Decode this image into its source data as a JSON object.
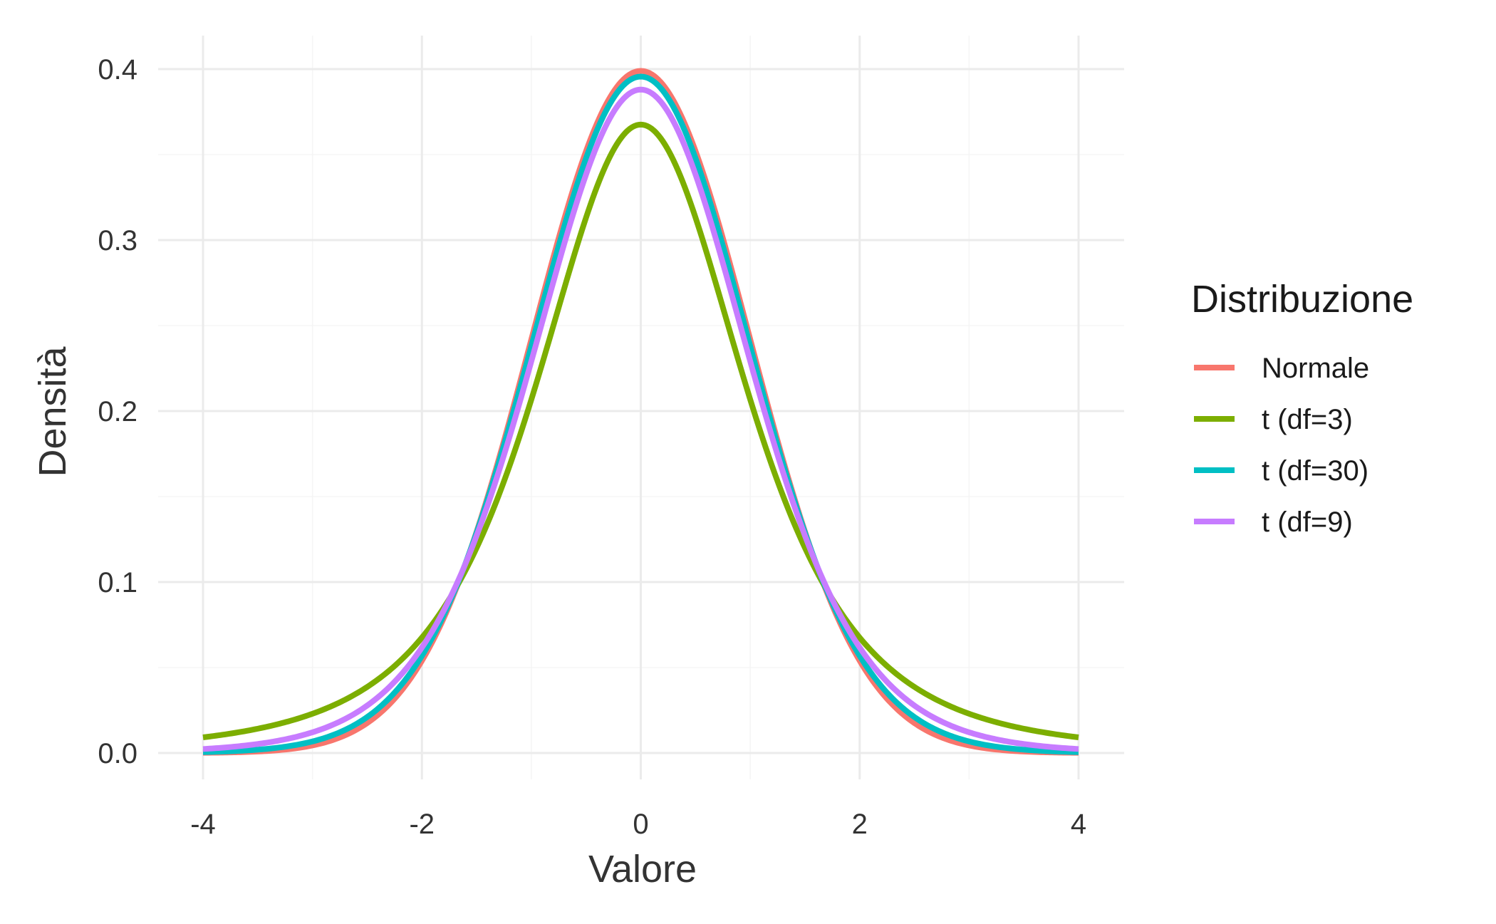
{
  "chart_data": {
    "type": "line",
    "xlabel": "Valore",
    "ylabel": "Densità",
    "xlim": [
      -4,
      4
    ],
    "ylim": [
      0,
      0.4
    ],
    "x_ticks": [
      "-4",
      "-2",
      "0",
      "2",
      "4"
    ],
    "y_ticks": [
      "0.0",
      "0.1",
      "0.2",
      "0.3",
      "0.4"
    ],
    "grid": true,
    "legend": {
      "title": "Distribuzione",
      "placement": "right"
    },
    "series": [
      {
        "name": "Normale",
        "color": "#F8766D",
        "df": null
      },
      {
        "name": "t (df=3)",
        "color": "#7CAE00",
        "df": 3
      },
      {
        "name": "t (df=30)",
        "color": "#00BFC4",
        "df": 30
      },
      {
        "name": "t (df=9)",
        "color": "#C77CFF",
        "df": 9
      }
    ],
    "sample_points": {
      "x": [
        -4,
        -3,
        -2,
        -1,
        0,
        1,
        2,
        3,
        4
      ],
      "Normale": [
        0.0001,
        0.0044,
        0.054,
        0.242,
        0.3989,
        0.242,
        0.054,
        0.0044,
        0.0001
      ],
      "t (df=3)": [
        0.0092,
        0.023,
        0.0675,
        0.2067,
        0.3676,
        0.2067,
        0.0675,
        0.023,
        0.0092
      ],
      "t (df=30)": [
        0.0003,
        0.006,
        0.0572,
        0.2395,
        0.3956,
        0.2395,
        0.0572,
        0.006,
        0.0003
      ],
      "t (df=9)": [
        0.0025,
        0.013,
        0.0642,
        0.2302,
        0.388,
        0.2302,
        0.0642,
        0.013,
        0.0025
      ]
    }
  }
}
